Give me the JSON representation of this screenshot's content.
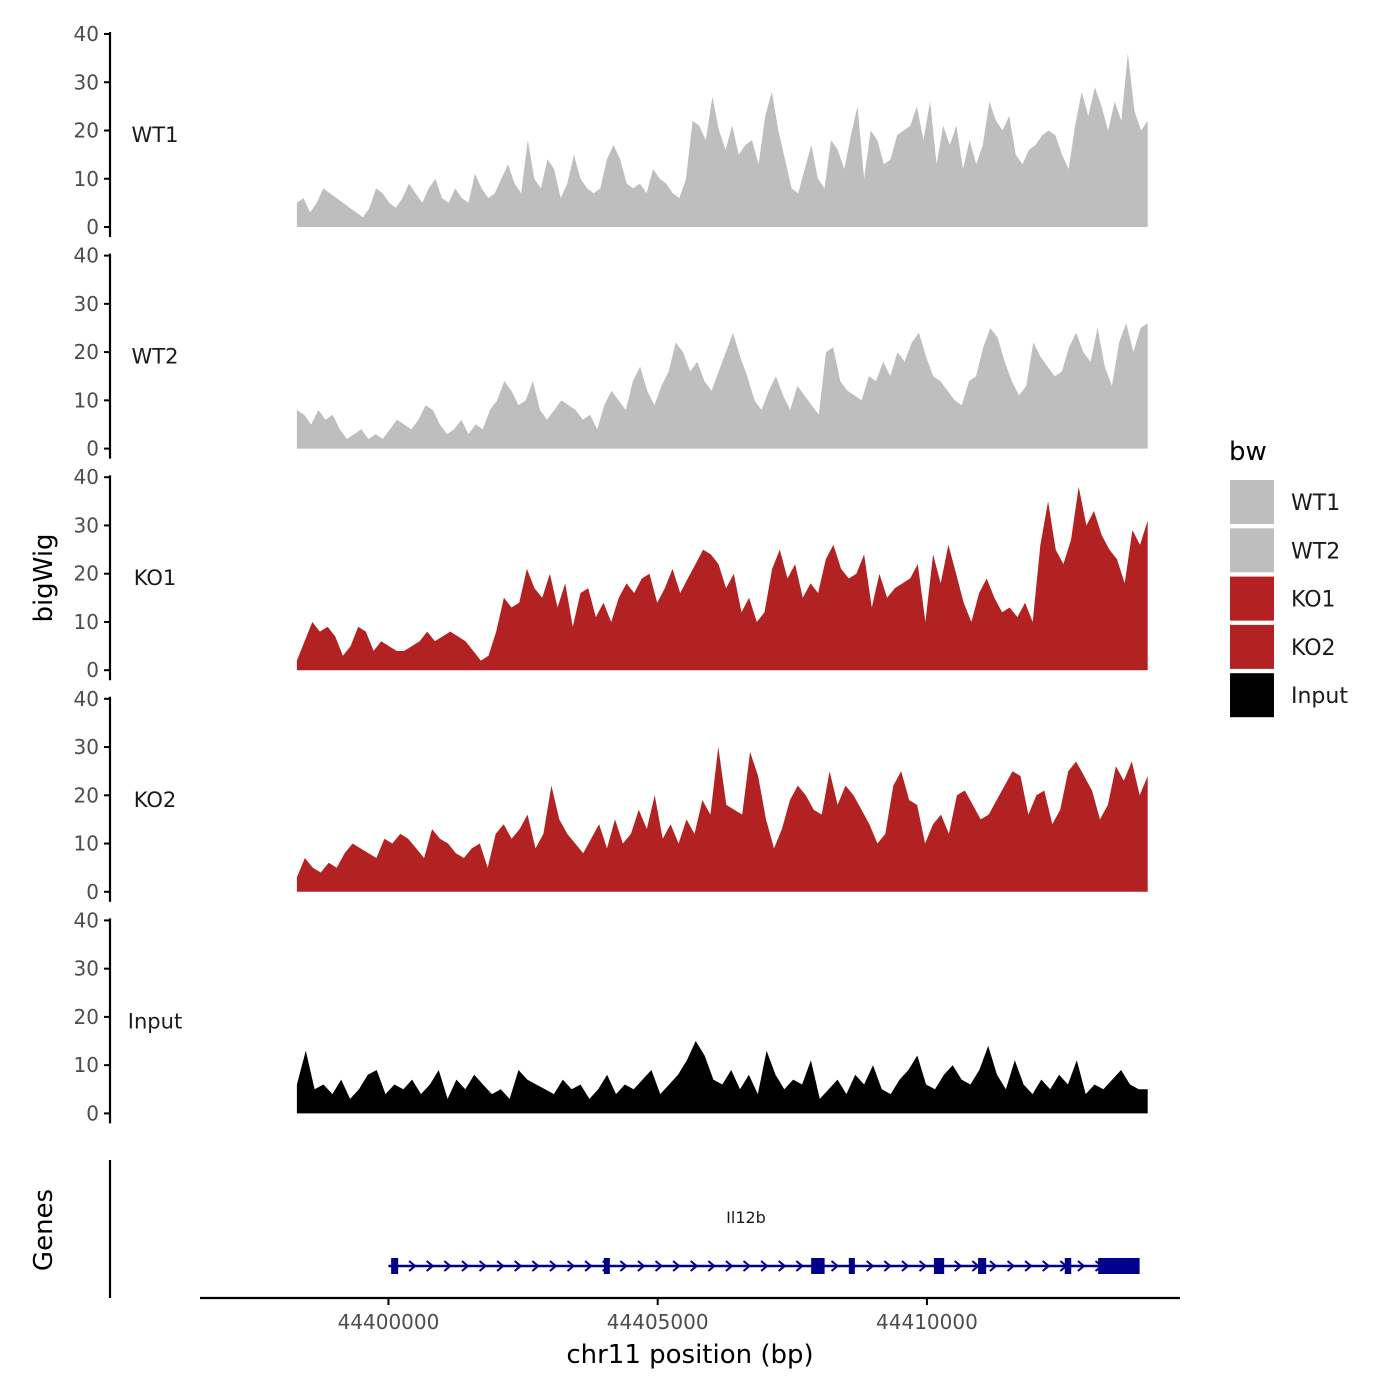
{
  "chart_data": {
    "type": "area",
    "ylabel": "bigWig",
    "xlabel": "chr11 position (bp)",
    "xlim": [
      44396500,
      44414700
    ],
    "x_range": [
      44398300,
      44414100
    ],
    "ylim": [
      0,
      40
    ],
    "yticks": [
      0,
      10,
      20,
      30,
      40
    ],
    "xticks": [
      {
        "value": 44400000,
        "label": "44400000"
      },
      {
        "value": 44405000,
        "label": "44405000"
      },
      {
        "value": 44410000,
        "label": "44410000"
      }
    ],
    "tracks": [
      {
        "name": "WT1",
        "color": "#bebebe",
        "values": [
          5,
          6,
          3,
          5,
          8,
          7,
          6,
          5,
          4,
          3,
          2,
          4,
          8,
          7,
          5,
          4,
          6,
          9,
          7,
          5,
          8,
          10,
          6,
          5,
          8,
          6,
          5,
          11,
          8,
          6,
          7,
          10,
          13,
          9,
          7,
          18,
          10,
          8,
          14,
          12,
          6,
          9,
          15,
          10,
          8,
          7,
          8,
          14,
          17,
          14,
          9,
          8,
          9,
          7,
          12,
          10,
          9,
          7,
          6,
          10,
          22,
          21,
          18,
          27,
          20,
          16,
          21,
          15,
          17,
          18,
          13,
          23,
          28,
          20,
          14,
          8,
          7,
          12,
          17,
          10,
          8,
          18,
          16,
          12,
          19,
          25,
          10,
          20,
          18,
          13,
          14,
          19,
          20,
          21,
          25,
          18,
          26,
          13,
          21,
          17,
          21,
          12,
          18,
          13,
          17,
          26,
          22,
          20,
          23,
          15,
          13,
          16,
          17,
          19,
          20,
          19,
          15,
          12,
          21,
          28,
          23,
          29,
          25,
          20,
          26,
          22,
          36,
          24,
          20,
          22
        ]
      },
      {
        "name": "WT2",
        "color": "#bebebe",
        "values": [
          8,
          7,
          5,
          8,
          6,
          7,
          4,
          2,
          3,
          4,
          2,
          3,
          2,
          4,
          6,
          5,
          4,
          6,
          9,
          8,
          5,
          3,
          4,
          6,
          3,
          5,
          4,
          8,
          10,
          14,
          12,
          9,
          10,
          14,
          8,
          6,
          8,
          10,
          9,
          8,
          6,
          7,
          4,
          9,
          12,
          10,
          8,
          14,
          17,
          12,
          9,
          13,
          16,
          22,
          20,
          16,
          18,
          14,
          12,
          16,
          20,
          24,
          19,
          15,
          10,
          8,
          12,
          15,
          11,
          8,
          13,
          11,
          9,
          7,
          20,
          21,
          14,
          12,
          11,
          10,
          15,
          14,
          18,
          15,
          20,
          18,
          22,
          24,
          19,
          15,
          14,
          12,
          10,
          9,
          14,
          15,
          21,
          25,
          23,
          18,
          14,
          11,
          13,
          22,
          19,
          17,
          15,
          16,
          21,
          24,
          20,
          18,
          25,
          17,
          13,
          22,
          26,
          20,
          25,
          26
        ]
      },
      {
        "name": "KO1",
        "color": "#b22222",
        "values": [
          2,
          6,
          10,
          8,
          9,
          7,
          3,
          5,
          9,
          8,
          4,
          6,
          5,
          4,
          4,
          5,
          6,
          8,
          6,
          7,
          8,
          7,
          6,
          4,
          2,
          3,
          8,
          15,
          13,
          14,
          21,
          17,
          15,
          20,
          13,
          18,
          9,
          16,
          17,
          11,
          14,
          10,
          15,
          18,
          16,
          19,
          20,
          14,
          17,
          21,
          16,
          19,
          22,
          25,
          24,
          22,
          17,
          20,
          12,
          15,
          10,
          12,
          21,
          25,
          19,
          22,
          15,
          18,
          16,
          23,
          26,
          21,
          19,
          20,
          24,
          13,
          20,
          15,
          17,
          18,
          19,
          22,
          10,
          24,
          18,
          26,
          20,
          14,
          10,
          16,
          19,
          15,
          12,
          13,
          11,
          14,
          10,
          26,
          35,
          25,
          22,
          27,
          38,
          30,
          33,
          28,
          25,
          23,
          18,
          29,
          26,
          31
        ]
      },
      {
        "name": "KO2",
        "color": "#b22222",
        "values": [
          3,
          7,
          5,
          4,
          6,
          5,
          8,
          10,
          9,
          8,
          7,
          11,
          10,
          12,
          11,
          9,
          7,
          13,
          11,
          10,
          8,
          7,
          9,
          10,
          5,
          12,
          14,
          11,
          13,
          16,
          9,
          12,
          22,
          15,
          12,
          10,
          8,
          11,
          14,
          9,
          15,
          10,
          12,
          17,
          13,
          20,
          11,
          14,
          10,
          15,
          12,
          19,
          16,
          30,
          18,
          17,
          16,
          29,
          24,
          15,
          9,
          13,
          19,
          22,
          20,
          17,
          16,
          25,
          18,
          22,
          20,
          17,
          14,
          10,
          12,
          22,
          25,
          19,
          18,
          10,
          14,
          16,
          12,
          20,
          21,
          18,
          15,
          16,
          19,
          22,
          25,
          24,
          16,
          20,
          21,
          14,
          17,
          25,
          27,
          24,
          21,
          15,
          18,
          26,
          23,
          27,
          20,
          24
        ]
      },
      {
        "name": "Input",
        "color": "#000000",
        "values": [
          6,
          13,
          5,
          6,
          4,
          7,
          3,
          5,
          8,
          9,
          4,
          6,
          5,
          7,
          4,
          6,
          9,
          3,
          7,
          5,
          8,
          6,
          4,
          5,
          3,
          9,
          7,
          6,
          5,
          4,
          7,
          5,
          6,
          3,
          5,
          8,
          4,
          6,
          5,
          7,
          9,
          4,
          6,
          8,
          11,
          15,
          12,
          7,
          6,
          9,
          5,
          8,
          4,
          13,
          8,
          5,
          7,
          6,
          11,
          3,
          5,
          7,
          4,
          8,
          6,
          10,
          5,
          4,
          7,
          9,
          12,
          6,
          5,
          8,
          10,
          7,
          6,
          9,
          14,
          8,
          5,
          11,
          6,
          4,
          7,
          5,
          8,
          6,
          11,
          4,
          6,
          5,
          7,
          9,
          6,
          5,
          5
        ]
      }
    ],
    "gene": {
      "name": "Il12b",
      "color": "#00008b",
      "start": 44400000,
      "end": 44413900,
      "exons": [
        [
          44400050,
          44400180
        ],
        [
          44404000,
          44404100
        ],
        [
          44407850,
          44408100
        ],
        [
          44408550,
          44408650
        ],
        [
          44410130,
          44410320
        ],
        [
          44410950,
          44411100
        ],
        [
          44412560,
          44412680
        ],
        [
          44413180,
          44413950
        ]
      ]
    },
    "lower_panel_label": "Genes",
    "legend": {
      "title": "bw",
      "placement": "right",
      "entries": [
        {
          "label": "WT1",
          "color": "#bebebe"
        },
        {
          "label": "WT2",
          "color": "#bebebe"
        },
        {
          "label": "KO1",
          "color": "#b22222"
        },
        {
          "label": "KO2",
          "color": "#b22222"
        },
        {
          "label": "Input",
          "color": "#000000"
        }
      ]
    }
  }
}
